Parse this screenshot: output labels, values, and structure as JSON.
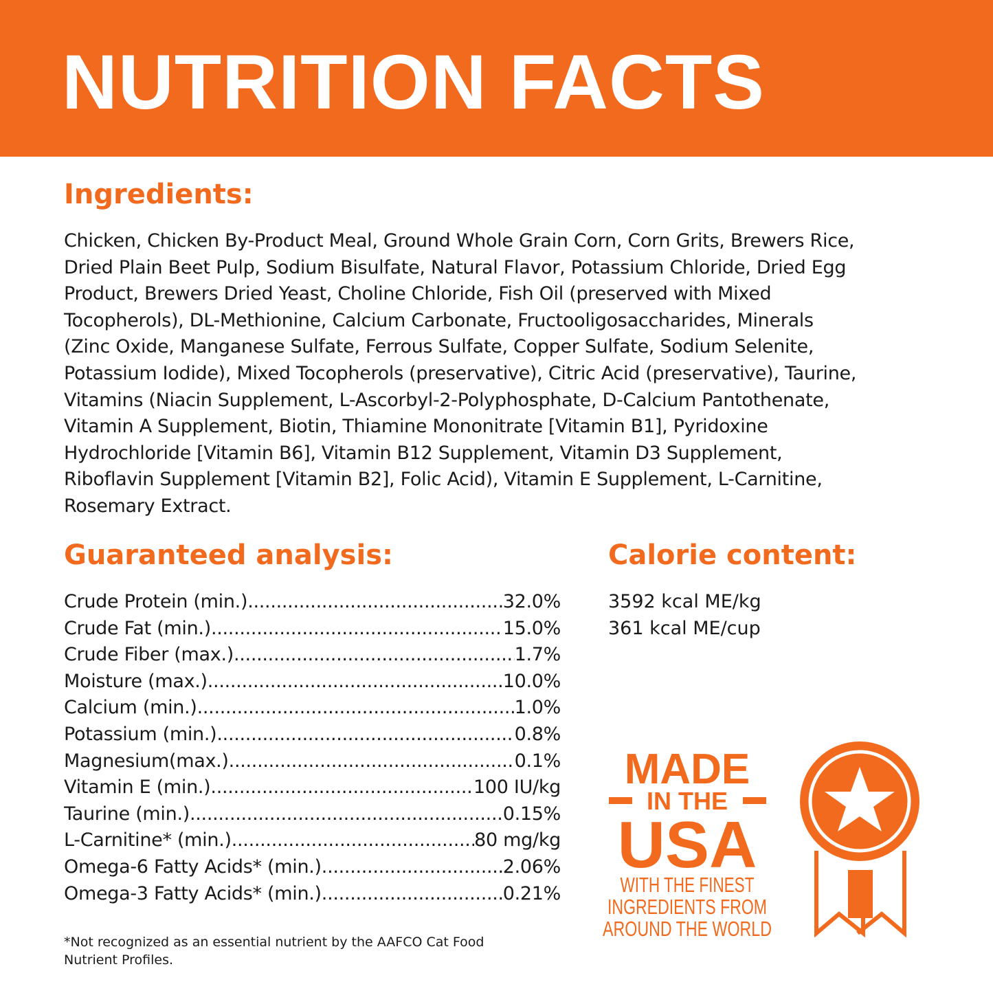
{
  "header": {
    "title": "NUTRITION FACTS"
  },
  "ingredients": {
    "heading": "Ingredients:",
    "lines": [
      "Chicken, Chicken By-Product Meal, Ground Whole Grain Corn, Corn Grits, Brewers Rice,",
      "Dried Plain Beet Pulp, Sodium Bisulfate, Natural Flavor, Potassium Chloride, Dried Egg",
      "Product, Brewers Dried Yeast, Choline Chloride, Fish Oil (preserved with Mixed",
      "Tocopherols), DL-Methionine, Calcium Carbonate, Fructooligosaccharides, Minerals",
      "(Zinc Oxide, Manganese Sulfate, Ferrous Sulfate, Copper Sulfate, Sodium Selenite,",
      "Potassium Iodide), Mixed Tocopherols (preservative), Citric Acid (preservative), Taurine,",
      "Vitamins (Niacin Supplement, L-Ascorbyl-2-Polyphosphate, D-Calcium Pantothenate,",
      "Vitamin A Supplement, Biotin, Thiamine Mononitrate [Vitamin B1], Pyridoxine",
      "Hydrochloride [Vitamin B6], Vitamin B12 Supplement, Vitamin D3 Supplement,",
      "Riboflavin Supplement [Vitamin B2], Folic Acid), Vitamin E Supplement, L-Carnitine,",
      "Rosemary Extract."
    ]
  },
  "analysis": {
    "heading": "Guaranteed analysis:",
    "rows": [
      {
        "label": "Crude Protein (min.)",
        "value": "32.0%"
      },
      {
        "label": "Crude Fat (min.)",
        "value": "15.0%"
      },
      {
        "label": "Crude Fiber (max.)",
        "value": "1.7%"
      },
      {
        "label": "Moisture (max.)",
        "value": "10.0%"
      },
      {
        "label": "Calcium (min.)",
        "value": "1.0%"
      },
      {
        "label": "Potassium (min.)",
        "value": "0.8%"
      },
      {
        "label": "Magnesium(max.)",
        "value": "0.1%"
      },
      {
        "label": "Vitamin E (min.)",
        "value": "100 IU/kg"
      },
      {
        "label": "Taurine (min.)",
        "value": "0.15%"
      },
      {
        "label": "L-Carnitine* (min.)",
        "value": "80 mg/kg"
      },
      {
        "label": "Omega-6 Fatty Acids* (min.)",
        "value": "2.06%"
      },
      {
        "label": "Omega-3 Fatty Acids* (min.)",
        "value": "0.21%"
      }
    ]
  },
  "calorie": {
    "heading": "Calorie content:",
    "lines": [
      "3592 kcal ME/kg",
      "361 kcal ME/cup"
    ]
  },
  "badge": {
    "line1": "MADE",
    "line2": "IN THE",
    "line3": "USA",
    "tagline": [
      "WITH THE FINEST",
      "INGREDIENTS FROM",
      "AROUND THE WORLD"
    ],
    "icon": "star-ribbon-medal-icon"
  },
  "footnote": {
    "lines": [
      "*Not recognized as an essential nutrient by the AAFCO Cat Food",
      "Nutrient Profiles."
    ]
  },
  "colors": {
    "accent": "#F26A1D",
    "text": "#1a1a1a",
    "background": "#ffffff"
  }
}
